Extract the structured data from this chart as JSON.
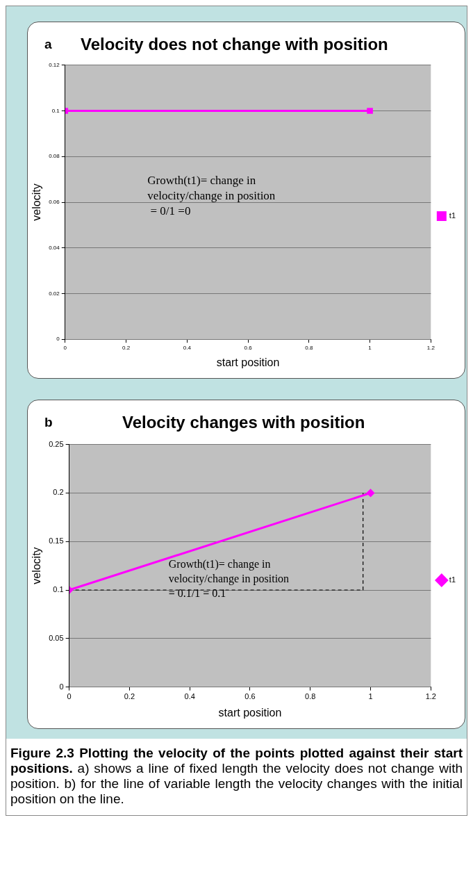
{
  "chart_data": [
    {
      "type": "line",
      "title": "Velocity does not change with position",
      "xlabel": "start position",
      "ylabel": "velocity",
      "xlim": [
        0,
        1.2
      ],
      "xticks": [
        0,
        0.2,
        0.4,
        0.6,
        0.8,
        1,
        1.2
      ],
      "ylim": [
        0,
        0.12
      ],
      "yticks": [
        0,
        0.02,
        0.04,
        0.06,
        0.08,
        0.1,
        0.12
      ],
      "grid": "y",
      "legend": "right",
      "marker": "square",
      "series": [
        {
          "name": "t1",
          "color": "#ff00ff",
          "x": [
            0,
            1
          ],
          "values": [
            0.1,
            0.1
          ]
        }
      ],
      "annotations": [
        "a",
        "Growth(t1)= change in\nvelocity/change in position\n = 0/1 =0"
      ]
    },
    {
      "type": "line",
      "title": "Velocity changes with position",
      "xlabel": "start position",
      "ylabel": "velocity",
      "xlim": [
        0,
        1.2
      ],
      "xticks": [
        0,
        0.2,
        0.4,
        0.6,
        0.8,
        1,
        1.2
      ],
      "ylim": [
        0,
        0.25
      ],
      "yticks": [
        0,
        0.05,
        0.1,
        0.15,
        0.2,
        0.25
      ],
      "grid": "y",
      "legend": "right",
      "marker": "diamond",
      "series": [
        {
          "name": "t1",
          "color": "#ff00ff",
          "x": [
            0,
            1
          ],
          "values": [
            0.1,
            0.2
          ]
        },
        {
          "color": "#000000",
          "x": [
            0,
            0.975,
            0.975
          ],
          "values": [
            0.1,
            0.1,
            0.2
          ],
          "line_style": "dashed",
          "marker": "none"
        }
      ],
      "annotations": [
        "b",
        "Growth(t1)= change in\nvelocity/change in position\n= 0.1/1 = 0.1",
        "Figure 2.3 Plotting the velocity of the points plotted against their start positions.",
        " a) shows a line of fixed length the velocity does not change with position. b) for the line of variable length the velocity changes with the initial position on the line."
      ]
    }
  ]
}
